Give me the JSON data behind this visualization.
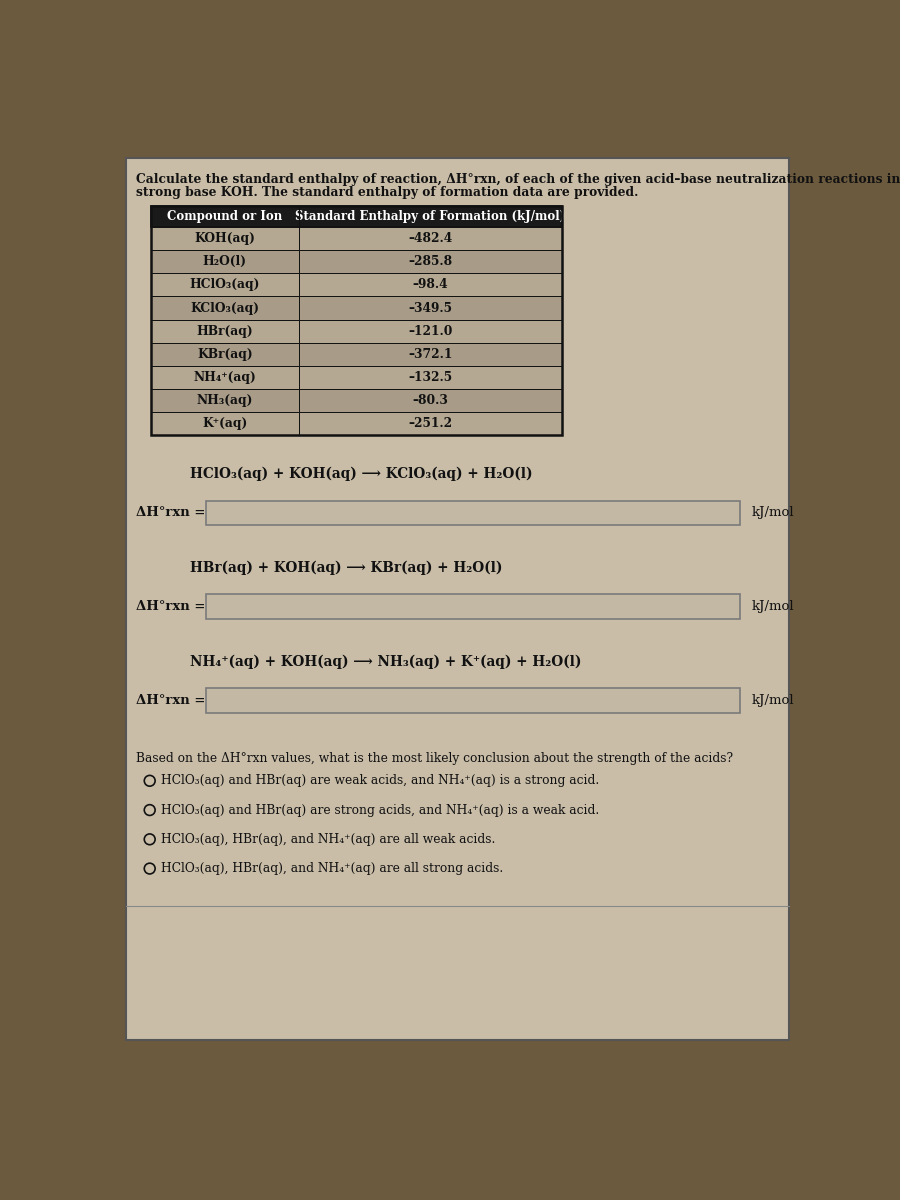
{
  "bg_outer": "#6b5a3e",
  "bg_panel": "#c9bda8",
  "title_line1": "Calculate the standard enthalpy of reaction, ΔH°rxn, of each of the given acid–base neutralization reactions involving the",
  "title_line2": "strong base KOH. The standard enthalpy of formation data are provided.",
  "table_header_col1": "Compound or Ion",
  "table_header_col2": "Standard Enthalpy of Formation (kJ/mol)",
  "table_rows": [
    [
      "KOH(aq)",
      "–482.4"
    ],
    [
      "H₂O(l)",
      "–285.8"
    ],
    [
      "HClO₃(aq)",
      "–98.4"
    ],
    [
      "KClO₃(aq)",
      "–349.5"
    ],
    [
      "HBr(aq)",
      "–121.0"
    ],
    [
      "KBr(aq)",
      "–372.1"
    ],
    [
      "NH₄⁺(aq)",
      "–132.5"
    ],
    [
      "NH₃(aq)",
      "–80.3"
    ],
    [
      "K⁺(aq)",
      "–251.2"
    ]
  ],
  "reaction1": "HClO₃(aq) + KOH(aq) ⟶ KClO₃(aq) + H₂O(l)",
  "reaction2": "HBr(aq) + KOH(aq) ⟶ KBr(aq) + H₂O(l)",
  "reaction3": "NH₄⁺(aq) + KOH(aq) ⟶ NH₃(aq) + K⁺(aq) + H₂O(l)",
  "dh_label": "ΔH°rxn =",
  "unit": "kJ/mol",
  "conclusion_q": "Based on the ΔH°rxn values, what is the most likely conclusion about the strength of the acids?",
  "choices": [
    "HClO₃(aq) and HBr(aq) are weak acids, and NH₄⁺(aq) is a strong acid.",
    "HClO₃(aq) and HBr(aq) are strong acids, and NH₄⁺(aq) is a weak acid.",
    "HClO₃(aq), HBr(aq), and NH₄⁺(aq) are all weak acids.",
    "HClO₃(aq), HBr(aq), and NH₄⁺(aq) are all strong acids."
  ],
  "text_dark": "#111111",
  "header_bg": "#1a1a1a",
  "header_fg": "#ffffff",
  "row_bg_even": "#b5a892",
  "row_bg_odd": "#a89c88",
  "input_box_bg": "#c2b8a3",
  "input_box_border": "#7a7a7a",
  "panel_border": "#555555"
}
